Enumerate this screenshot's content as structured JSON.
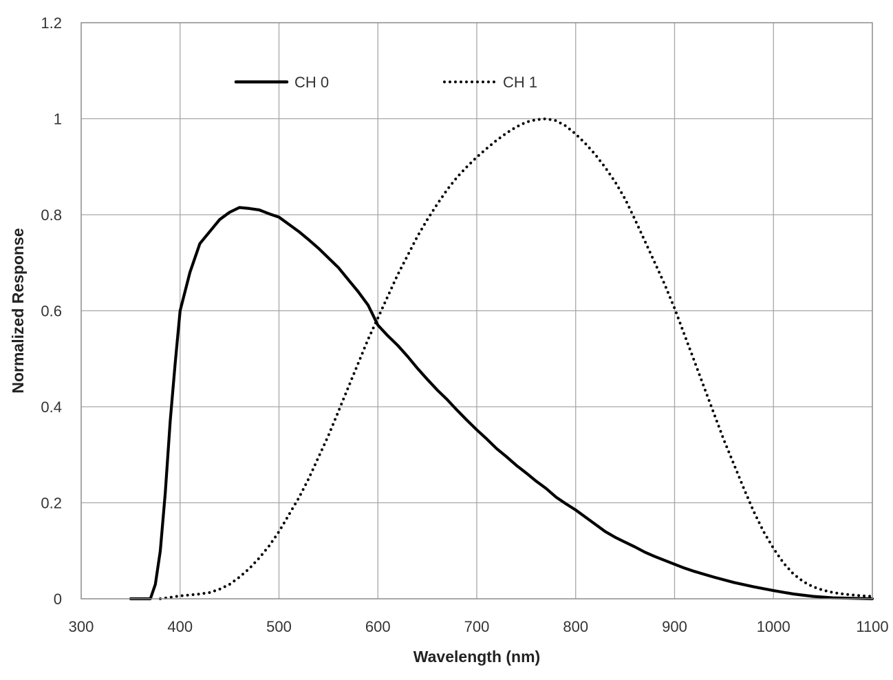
{
  "chart_data": {
    "type": "line",
    "title": "",
    "xlabel": "Wavelength (nm)",
    "ylabel": "Normalized Response",
    "xlim": [
      300,
      1100
    ],
    "ylim": [
      0,
      1.2
    ],
    "x_ticks": [
      300,
      400,
      500,
      600,
      700,
      800,
      900,
      1000,
      1100
    ],
    "y_ticks": [
      0,
      0.2,
      0.4,
      0.6,
      0.8,
      1,
      1.2
    ],
    "x_tick_labels": [
      "300",
      "400",
      "500",
      "600",
      "700",
      "800",
      "900",
      "1000",
      "1100"
    ],
    "y_tick_labels": [
      "0",
      "0.2",
      "0.4",
      "0.6",
      "0.8",
      "1",
      "1.2"
    ],
    "grid": true,
    "legend_position": "top",
    "series": [
      {
        "name": "CH 0",
        "line_style": "solid",
        "color": "#000000",
        "points": [
          [
            350,
            0
          ],
          [
            360,
            0
          ],
          [
            370,
            0
          ],
          [
            375,
            0.03
          ],
          [
            380,
            0.1
          ],
          [
            385,
            0.22
          ],
          [
            390,
            0.37
          ],
          [
            395,
            0.49
          ],
          [
            400,
            0.6
          ],
          [
            410,
            0.68
          ],
          [
            420,
            0.74
          ],
          [
            430,
            0.765
          ],
          [
            440,
            0.79
          ],
          [
            450,
            0.805
          ],
          [
            460,
            0.815
          ],
          [
            470,
            0.813
          ],
          [
            480,
            0.81
          ],
          [
            490,
            0.802
          ],
          [
            500,
            0.795
          ],
          [
            510,
            0.78
          ],
          [
            520,
            0.765
          ],
          [
            530,
            0.748
          ],
          [
            540,
            0.73
          ],
          [
            550,
            0.71
          ],
          [
            560,
            0.69
          ],
          [
            570,
            0.665
          ],
          [
            580,
            0.64
          ],
          [
            590,
            0.612
          ],
          [
            600,
            0.57
          ],
          [
            610,
            0.548
          ],
          [
            620,
            0.528
          ],
          [
            630,
            0.505
          ],
          [
            640,
            0.48
          ],
          [
            650,
            0.457
          ],
          [
            660,
            0.435
          ],
          [
            670,
            0.415
          ],
          [
            680,
            0.393
          ],
          [
            690,
            0.372
          ],
          [
            700,
            0.352
          ],
          [
            710,
            0.333
          ],
          [
            720,
            0.313
          ],
          [
            730,
            0.296
          ],
          [
            740,
            0.278
          ],
          [
            750,
            0.262
          ],
          [
            760,
            0.245
          ],
          [
            770,
            0.23
          ],
          [
            780,
            0.212
          ],
          [
            790,
            0.198
          ],
          [
            800,
            0.185
          ],
          [
            810,
            0.17
          ],
          [
            820,
            0.155
          ],
          [
            830,
            0.14
          ],
          [
            840,
            0.128
          ],
          [
            850,
            0.118
          ],
          [
            860,
            0.108
          ],
          [
            870,
            0.097
          ],
          [
            880,
            0.088
          ],
          [
            890,
            0.08
          ],
          [
            900,
            0.072
          ],
          [
            910,
            0.064
          ],
          [
            920,
            0.057
          ],
          [
            940,
            0.045
          ],
          [
            960,
            0.034
          ],
          [
            980,
            0.025
          ],
          [
            1000,
            0.017
          ],
          [
            1020,
            0.01
          ],
          [
            1040,
            0.005
          ],
          [
            1060,
            0.002
          ],
          [
            1080,
            0.001
          ],
          [
            1100,
            0
          ]
        ]
      },
      {
        "name": "CH 1",
        "line_style": "dotted",
        "color": "#000000",
        "points": [
          [
            380,
            0
          ],
          [
            390,
            0.003
          ],
          [
            400,
            0.006
          ],
          [
            410,
            0.008
          ],
          [
            420,
            0.01
          ],
          [
            430,
            0.013
          ],
          [
            440,
            0.02
          ],
          [
            450,
            0.03
          ],
          [
            460,
            0.045
          ],
          [
            470,
            0.063
          ],
          [
            480,
            0.085
          ],
          [
            490,
            0.11
          ],
          [
            500,
            0.14
          ],
          [
            510,
            0.175
          ],
          [
            520,
            0.21
          ],
          [
            530,
            0.25
          ],
          [
            540,
            0.295
          ],
          [
            550,
            0.34
          ],
          [
            560,
            0.39
          ],
          [
            570,
            0.44
          ],
          [
            580,
            0.49
          ],
          [
            590,
            0.54
          ],
          [
            600,
            0.585
          ],
          [
            610,
            0.63
          ],
          [
            620,
            0.675
          ],
          [
            630,
            0.715
          ],
          [
            640,
            0.755
          ],
          [
            650,
            0.79
          ],
          [
            660,
            0.822
          ],
          [
            670,
            0.852
          ],
          [
            680,
            0.878
          ],
          [
            690,
            0.9
          ],
          [
            700,
            0.92
          ],
          [
            710,
            0.938
          ],
          [
            720,
            0.955
          ],
          [
            730,
            0.97
          ],
          [
            740,
            0.983
          ],
          [
            750,
            0.993
          ],
          [
            760,
            0.998
          ],
          [
            770,
            1.0
          ],
          [
            780,
            0.996
          ],
          [
            790,
            0.985
          ],
          [
            800,
            0.968
          ],
          [
            810,
            0.948
          ],
          [
            820,
            0.925
          ],
          [
            830,
            0.898
          ],
          [
            840,
            0.868
          ],
          [
            850,
            0.833
          ],
          [
            860,
            0.79
          ],
          [
            870,
            0.745
          ],
          [
            880,
            0.7
          ],
          [
            890,
            0.655
          ],
          [
            900,
            0.605
          ],
          [
            910,
            0.55
          ],
          [
            920,
            0.495
          ],
          [
            930,
            0.44
          ],
          [
            940,
            0.385
          ],
          [
            950,
            0.33
          ],
          [
            960,
            0.28
          ],
          [
            970,
            0.23
          ],
          [
            980,
            0.182
          ],
          [
            990,
            0.14
          ],
          [
            1000,
            0.105
          ],
          [
            1010,
            0.075
          ],
          [
            1020,
            0.052
          ],
          [
            1030,
            0.036
          ],
          [
            1040,
            0.025
          ],
          [
            1050,
            0.018
          ],
          [
            1060,
            0.013
          ],
          [
            1070,
            0.01
          ],
          [
            1080,
            0.008
          ],
          [
            1090,
            0.006
          ],
          [
            1100,
            0.005
          ]
        ]
      }
    ]
  }
}
